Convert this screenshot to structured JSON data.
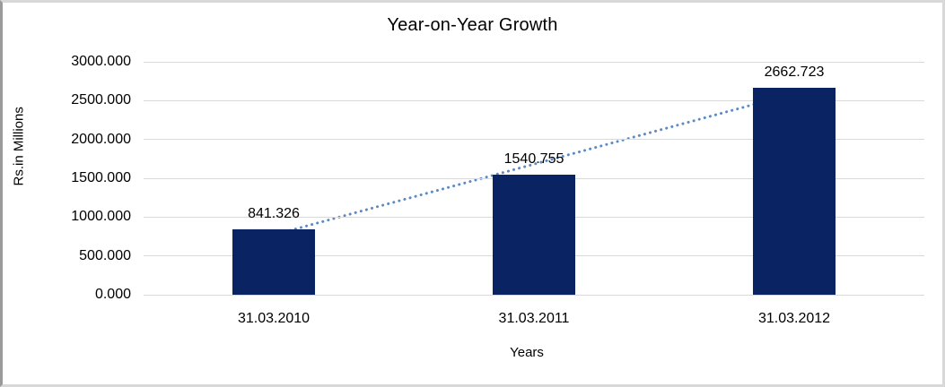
{
  "chart_data": {
    "type": "bar",
    "title": "Year-on-Year Growth",
    "xlabel": "Years",
    "ylabel": "Rs.in Millions",
    "categories": [
      "31.03.2010",
      "31.03.2011",
      "31.03.2012"
    ],
    "values": [
      841.326,
      1540.755,
      2662.723
    ],
    "value_labels": [
      "841.326",
      "1540.755",
      "2662.723"
    ],
    "ylim": [
      0,
      3000
    ],
    "ytick_step": 500,
    "ytick_labels": [
      "0.000",
      "500.000",
      "1000.000",
      "1500.000",
      "2000.000",
      "2500.000",
      "3000.000"
    ],
    "grid": true,
    "legend": "none",
    "bar_color": "#0a2463",
    "gridline_color": "#d9d9d9",
    "trendline": {
      "type": "linear",
      "style": "dotted",
      "color": "#5b8ac6"
    }
  }
}
